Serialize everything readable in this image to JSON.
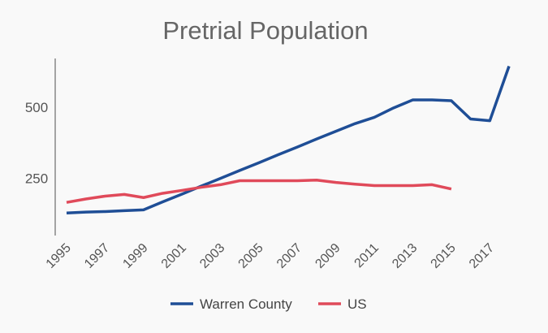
{
  "chart_data": {
    "type": "line",
    "title": "Pretrial Population",
    "xlabel": "",
    "ylabel": "",
    "x": [
      1995,
      1996,
      1997,
      1998,
      1999,
      2000,
      2001,
      2002,
      2003,
      2004,
      2005,
      2006,
      2007,
      2008,
      2009,
      2010,
      2011,
      2012,
      2013,
      2014,
      2015,
      2016,
      2017,
      2018
    ],
    "xticks": [
      "1995",
      "1997",
      "1999",
      "2001",
      "2003",
      "2005",
      "2007",
      "2009",
      "2011",
      "2013",
      "2015",
      "2017"
    ],
    "yticks": [
      "250",
      "500"
    ],
    "ylim": [
      50,
      670
    ],
    "xlim": [
      1995,
      2018
    ],
    "grid": false,
    "legend_position": "bottom",
    "series": [
      {
        "name": "Warren County",
        "color": "#1f4e96",
        "values": [
          129,
          132,
          134,
          137,
          140,
          168,
          195,
          223,
          250,
          278,
          305,
          333,
          360,
          388,
          415,
          442,
          464,
          497,
          525,
          525,
          522,
          458,
          452,
          643
        ]
      },
      {
        "name": "US",
        "color": "#e04a5a",
        "values": [
          166,
          178,
          188,
          194,
          183,
          198,
          208,
          219,
          228,
          242,
          242,
          242,
          242,
          244,
          236,
          230,
          225,
          225,
          225,
          228,
          213,
          null,
          null,
          null
        ]
      }
    ]
  }
}
